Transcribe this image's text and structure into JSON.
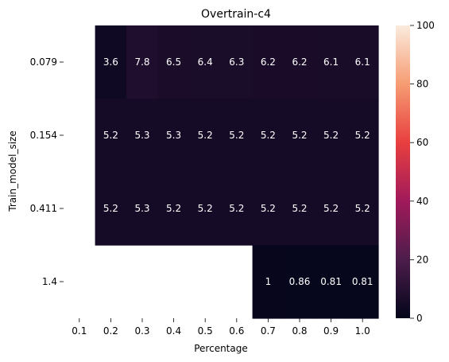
{
  "chart_data": {
    "type": "heatmap",
    "title": "Overtrain-c4",
    "xlabel": "Percentage",
    "ylabel": "Train_model_size",
    "x_categories": [
      "0.1",
      "0.2",
      "0.3",
      "0.4",
      "0.5",
      "0.6",
      "0.7",
      "0.8",
      "0.9",
      "1.0"
    ],
    "y_categories": [
      "0.079",
      "0.154",
      "0.411",
      "1.4"
    ],
    "values": [
      [
        null,
        3.6,
        7.8,
        6.5,
        6.4,
        6.3,
        6.2,
        6.2,
        6.1,
        6.1
      ],
      [
        null,
        5.2,
        5.3,
        5.3,
        5.2,
        5.2,
        5.2,
        5.2,
        5.2,
        5.2
      ],
      [
        null,
        5.2,
        5.3,
        5.2,
        5.2,
        5.2,
        5.2,
        5.2,
        5.2,
        5.2
      ],
      [
        null,
        null,
        null,
        null,
        null,
        null,
        1,
        0.86,
        0.81,
        0.81
      ]
    ],
    "value_labels": [
      [
        "",
        "3.6",
        "7.8",
        "6.5",
        "6.4",
        "6.3",
        "6.2",
        "6.2",
        "6.1",
        "6.1"
      ],
      [
        "",
        "5.2",
        "5.3",
        "5.3",
        "5.2",
        "5.2",
        "5.2",
        "5.2",
        "5.2",
        "5.2"
      ],
      [
        "",
        "5.2",
        "5.3",
        "5.2",
        "5.2",
        "5.2",
        "5.2",
        "5.2",
        "5.2",
        "5.2"
      ],
      [
        "",
        "",
        "",
        "",
        "",
        "",
        "1",
        "0.86",
        "0.81",
        "0.81"
      ]
    ],
    "colorbar": {
      "range": [
        0,
        100
      ],
      "ticks": [
        0,
        20,
        40,
        60,
        80,
        100
      ],
      "colormap": "rocket",
      "colors": [
        "#03051a",
        "#4c1d4b",
        "#a11a5b",
        "#e83f3f",
        "#f69c73",
        "#faebdd"
      ]
    },
    "cell_text_color": "#ffffff"
  }
}
